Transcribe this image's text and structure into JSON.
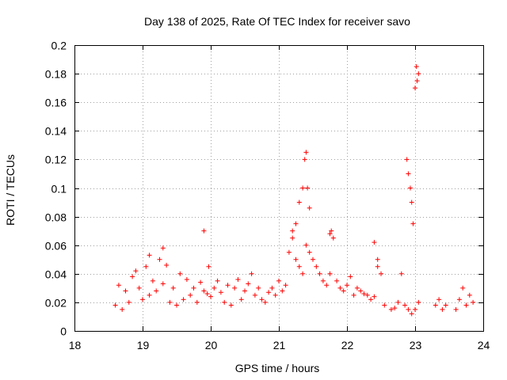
{
  "chart_data": {
    "type": "scatter",
    "title": "Day 138 of 2025, Rate Of TEC Index for receiver savo",
    "xlabel": "GPS time / hours",
    "ylabel": "ROTI / TECUs",
    "xlim": [
      18,
      24
    ],
    "ylim": [
      0,
      0.2
    ],
    "xticks": [
      18,
      19,
      20,
      21,
      22,
      23,
      24
    ],
    "yticks": [
      0,
      0.02,
      0.04,
      0.06,
      0.08,
      0.1,
      0.12,
      0.14,
      0.16,
      0.18,
      0.2
    ],
    "xtick_labels": [
      "18",
      "19",
      "20",
      "21",
      "22",
      "23",
      "24"
    ],
    "ytick_labels": [
      "0",
      "0.02",
      "0.04",
      "0.06",
      "0.08",
      "0.1",
      "0.12",
      "0.14",
      "0.16",
      "0.18",
      "0.2"
    ],
    "grid": true,
    "marker": "+",
    "marker_color": "#ff0000",
    "series": [
      {
        "name": "ROTI",
        "x": [
          18.6,
          18.65,
          18.7,
          18.75,
          18.8,
          18.85,
          18.9,
          18.95,
          19.0,
          19.05,
          19.1,
          19.15,
          19.2,
          19.25,
          19.3,
          19.35,
          19.4,
          19.45,
          19.5,
          19.55,
          19.6,
          19.65,
          19.7,
          19.75,
          19.8,
          19.85,
          19.9,
          19.95,
          20.0,
          20.05,
          20.1,
          20.15,
          20.2,
          20.25,
          20.3,
          20.35,
          20.4,
          20.45,
          20.5,
          20.55,
          20.6,
          20.65,
          20.7,
          20.75,
          20.8,
          20.85,
          20.9,
          20.95,
          21.0,
          21.05,
          21.1,
          21.15,
          21.2,
          21.25,
          21.3,
          21.35,
          21.4,
          21.45,
          21.5,
          21.55,
          21.6,
          21.65,
          21.7,
          21.75,
          21.8,
          21.85,
          21.9,
          21.95,
          22.0,
          22.05,
          22.1,
          22.15,
          22.2,
          22.25,
          22.3,
          22.35,
          22.4,
          22.45,
          22.5,
          22.55,
          22.65,
          22.7,
          22.75,
          22.8,
          22.85,
          22.9,
          22.95,
          23.0,
          23.05,
          23.3,
          23.35,
          23.4,
          23.45,
          23.6,
          23.65,
          23.7,
          23.75,
          23.8,
          23.85,
          19.1,
          19.3,
          19.9,
          19.97,
          21.2,
          21.25,
          21.3,
          21.35,
          21.38,
          21.4,
          21.42,
          21.45,
          21.75,
          21.77,
          22.4,
          22.45,
          22.88,
          22.9,
          22.93,
          22.95,
          22.97,
          23.0,
          23.02,
          23.03,
          23.05
        ],
        "y": [
          0.018,
          0.032,
          0.015,
          0.028,
          0.02,
          0.038,
          0.042,
          0.03,
          0.022,
          0.045,
          0.025,
          0.035,
          0.028,
          0.05,
          0.033,
          0.046,
          0.02,
          0.03,
          0.018,
          0.04,
          0.022,
          0.036,
          0.025,
          0.03,
          0.02,
          0.034,
          0.028,
          0.026,
          0.024,
          0.03,
          0.035,
          0.027,
          0.02,
          0.032,
          0.018,
          0.03,
          0.036,
          0.022,
          0.028,
          0.033,
          0.04,
          0.025,
          0.03,
          0.022,
          0.02,
          0.027,
          0.03,
          0.025,
          0.035,
          0.028,
          0.032,
          0.055,
          0.065,
          0.05,
          0.045,
          0.04,
          0.06,
          0.055,
          0.05,
          0.045,
          0.04,
          0.035,
          0.032,
          0.04,
          0.065,
          0.035,
          0.03,
          0.028,
          0.032,
          0.038,
          0.025,
          0.03,
          0.028,
          0.026,
          0.025,
          0.022,
          0.024,
          0.05,
          0.04,
          0.018,
          0.015,
          0.016,
          0.02,
          0.04,
          0.018,
          0.015,
          0.012,
          0.015,
          0.02,
          0.018,
          0.022,
          0.015,
          0.018,
          0.015,
          0.022,
          0.03,
          0.018,
          0.025,
          0.02,
          0.053,
          0.058,
          0.07,
          0.045,
          0.07,
          0.075,
          0.09,
          0.1,
          0.12,
          0.125,
          0.1,
          0.086,
          0.068,
          0.07,
          0.062,
          0.045,
          0.12,
          0.11,
          0.1,
          0.09,
          0.075,
          0.17,
          0.185,
          0.175,
          0.18
        ]
      }
    ]
  }
}
